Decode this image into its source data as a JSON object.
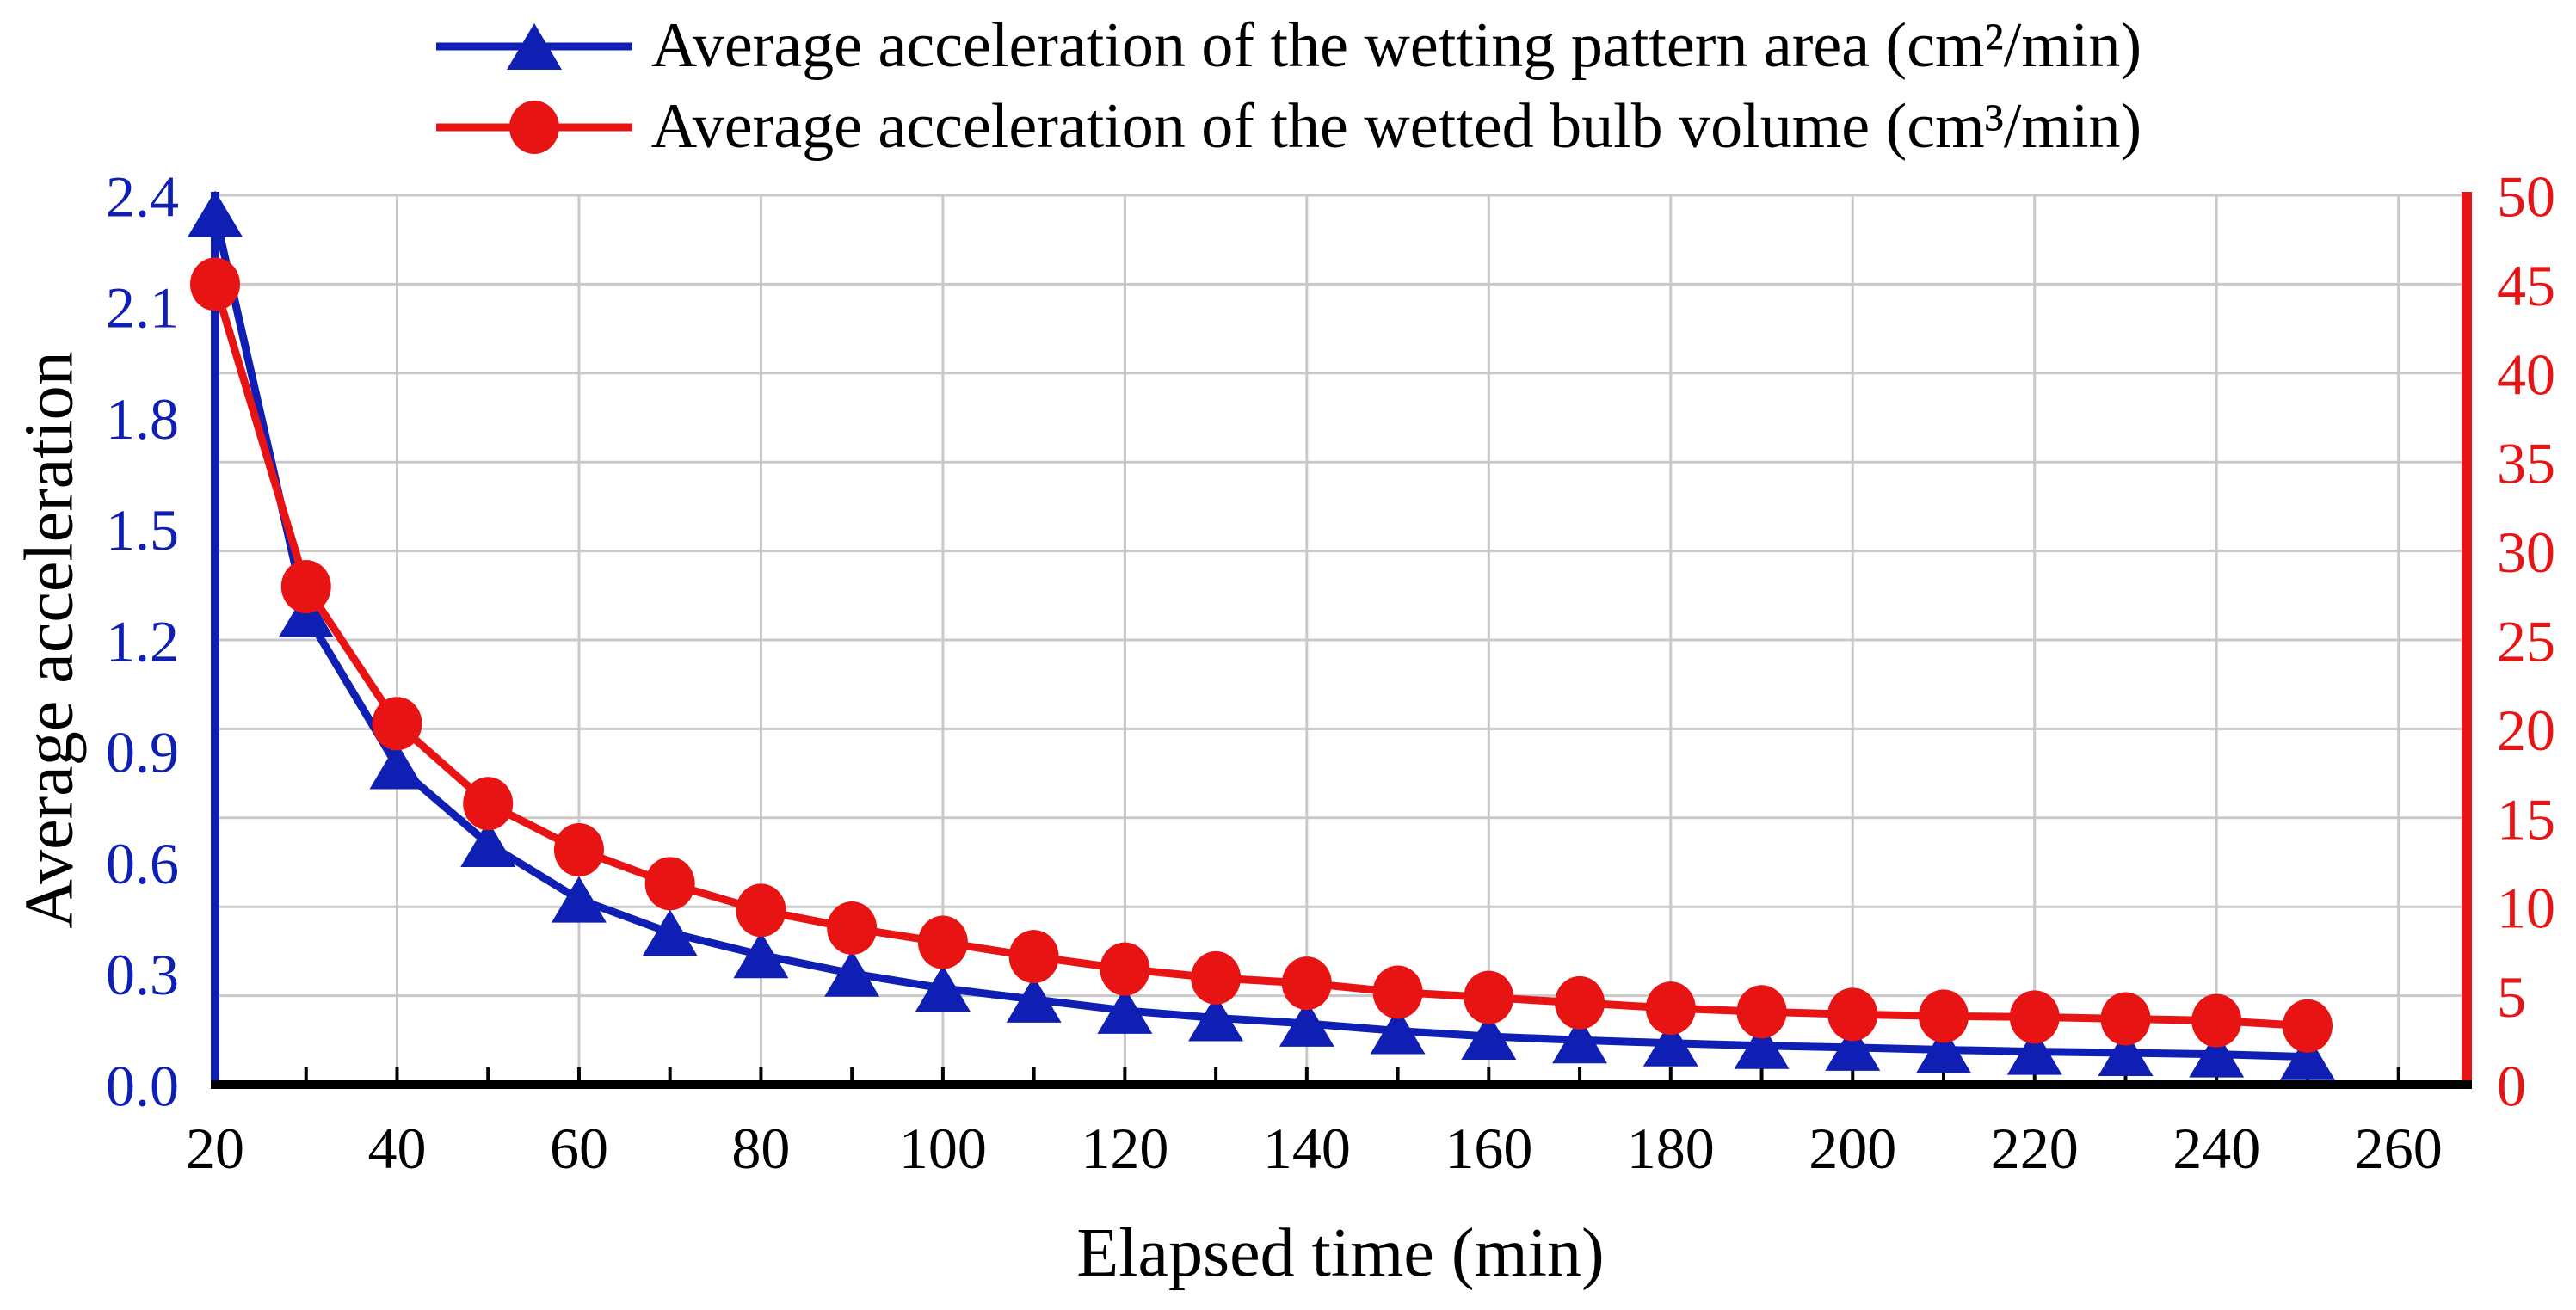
{
  "figure": {
    "background": "#ffffff"
  },
  "chart_data": {
    "type": "line",
    "title": "",
    "x": [
      20,
      30,
      40,
      50,
      60,
      70,
      80,
      90,
      100,
      110,
      120,
      130,
      140,
      150,
      160,
      170,
      180,
      190,
      200,
      210,
      220,
      230,
      240,
      250
    ],
    "series": [
      {
        "name": "Average acceleration of the wetting pattern area (cm²/min)",
        "axis": "left",
        "marker": "triangle",
        "color": "#0f1fb4",
        "values": [
          2.35,
          1.27,
          0.86,
          0.65,
          0.5,
          0.41,
          0.35,
          0.3,
          0.26,
          0.23,
          0.2,
          0.18,
          0.165,
          0.145,
          0.13,
          0.12,
          0.112,
          0.105,
          0.1,
          0.094,
          0.089,
          0.086,
          0.082,
          0.075
        ]
      },
      {
        "name": "Average acceleration of the wetted bulb volume (cm³/min)",
        "axis": "right",
        "marker": "circle",
        "color": "#e81414",
        "values": [
          45,
          28,
          20.3,
          15.8,
          13.2,
          11.3,
          9.8,
          8.8,
          8.0,
          7.2,
          6.5,
          6.0,
          5.7,
          5.2,
          4.9,
          4.6,
          4.3,
          4.1,
          3.95,
          3.85,
          3.8,
          3.7,
          3.6,
          3.3
        ]
      }
    ],
    "x_axis": {
      "label": "Elapsed time (min)",
      "ticks": [
        20,
        40,
        60,
        80,
        100,
        120,
        140,
        160,
        180,
        200,
        220,
        240,
        260
      ],
      "minor_tick_step": 10,
      "range": [
        20,
        267.5
      ],
      "color": "#000000"
    },
    "y_left": {
      "label": "Average acceleration",
      "tick_labels": [
        "0.0",
        "0.3",
        "0.6",
        "0.9",
        "1.2",
        "1.5",
        "1.8",
        "2.1",
        "2.4"
      ],
      "range": [
        0,
        2.4
      ],
      "color": "#0f1fb4"
    },
    "y_right": {
      "tick_labels": [
        "0",
        "5",
        "10",
        "15",
        "20",
        "25",
        "30",
        "35",
        "40",
        "45",
        "50"
      ],
      "range": [
        0,
        50
      ],
      "color": "#e81414"
    },
    "grid": {
      "on": true,
      "color": "#c9c9c9",
      "horizontal_divisions": 10,
      "vertical_gridline_x": [
        40,
        60,
        80,
        100,
        120,
        140,
        160,
        180,
        200,
        220,
        240,
        260
      ]
    },
    "legend_position": "top-center"
  }
}
